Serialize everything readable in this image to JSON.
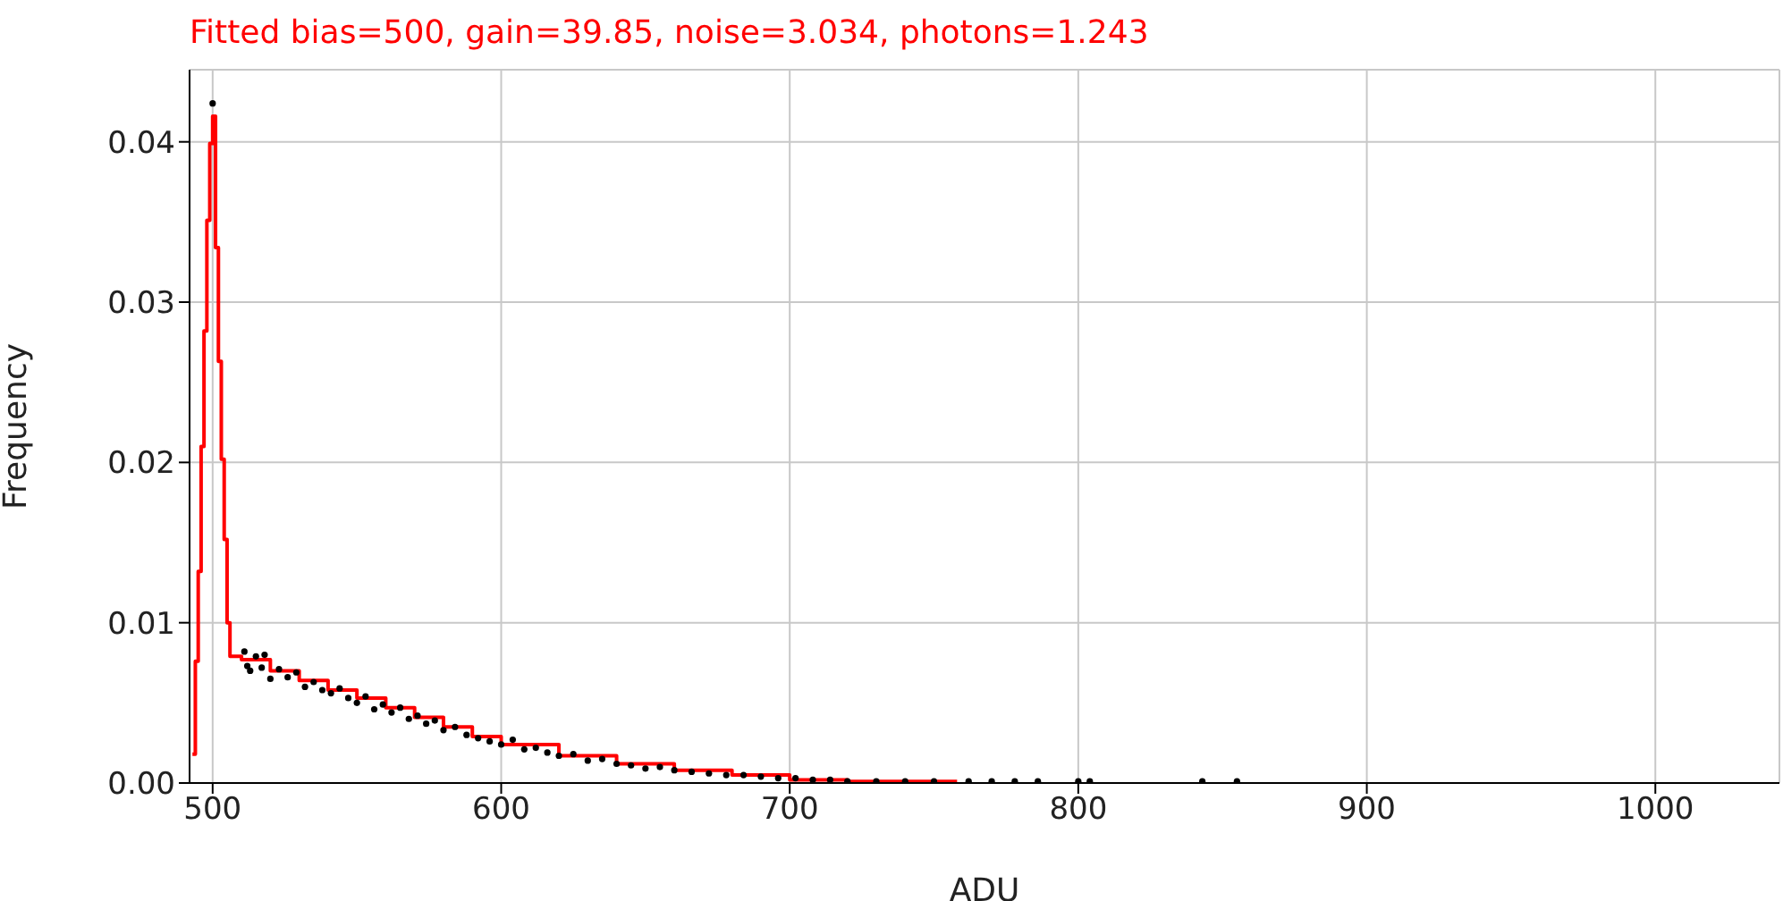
{
  "chart_data": {
    "type": "scatter",
    "title": "Fitted bias=500, gain=39.85, noise=3.034, photons=1.243",
    "xlabel": "ADU",
    "ylabel": "Frequency",
    "xlim": [
      492,
      1043
    ],
    "xticks": [
      500,
      600,
      700,
      800,
      900,
      1000
    ],
    "ylim": [
      0,
      0.0445
    ],
    "yticks": [
      {
        "value": 0,
        "label": "0.00"
      },
      {
        "value": 0.01,
        "label": "0.01"
      },
      {
        "value": 0.02,
        "label": "0.02"
      },
      {
        "value": 0.03,
        "label": "0.03"
      },
      {
        "value": 0.04,
        "label": "0.04"
      }
    ],
    "grid": true,
    "series": [
      {
        "color": "#000000",
        "marker": "circle",
        "x": [
          500,
          511,
          512,
          513,
          515,
          517,
          518,
          520,
          523,
          526,
          529,
          532,
          535,
          538,
          541,
          544,
          547,
          550,
          553,
          556,
          559,
          562,
          565,
          568,
          571,
          574,
          577,
          580,
          584,
          588,
          592,
          596,
          600,
          604,
          608,
          612,
          616,
          620,
          625,
          630,
          635,
          640,
          645,
          650,
          655,
          660,
          666,
          672,
          678,
          684,
          690,
          696,
          702,
          708,
          714,
          720,
          730,
          740,
          750,
          762,
          770,
          778,
          786,
          800,
          804,
          843,
          855
        ],
        "values": [
          0.0424,
          0.0082,
          0.0073,
          0.007,
          0.0079,
          0.0072,
          0.008,
          0.0065,
          0.0071,
          0.0066,
          0.0069,
          0.006,
          0.0063,
          0.0058,
          0.0056,
          0.0059,
          0.0053,
          0.005,
          0.0054,
          0.0046,
          0.0049,
          0.0044,
          0.0047,
          0.004,
          0.0042,
          0.0037,
          0.0039,
          0.0033,
          0.0035,
          0.003,
          0.0028,
          0.0026,
          0.0024,
          0.0027,
          0.0021,
          0.0022,
          0.0019,
          0.0017,
          0.0018,
          0.0014,
          0.0015,
          0.0012,
          0.0011,
          0.0009,
          0.001,
          0.0008,
          0.0007,
          0.0006,
          0.0005,
          0.0005,
          0.0004,
          0.0003,
          0.0003,
          0.0002,
          0.0002,
          0.0001,
          0.0001,
          0.0001,
          0.0001,
          0.0001,
          0.0001,
          0.0001,
          0.0001,
          0.0001,
          0.0001,
          0.0001,
          0.0001
        ]
      },
      {
        "type": "step",
        "color": "#ff0000",
        "marker": "none",
        "x": [
          493,
          494,
          495,
          496,
          497,
          498,
          499,
          500,
          501,
          502,
          503,
          504,
          505,
          506,
          510,
          520,
          530,
          540,
          550,
          560,
          570,
          580,
          590,
          600,
          620,
          640,
          660,
          680,
          700,
          720,
          740,
          758
        ],
        "values": [
          0.0018,
          0.0076,
          0.0132,
          0.021,
          0.0282,
          0.0351,
          0.0399,
          0.0416,
          0.0334,
          0.0263,
          0.0202,
          0.0152,
          0.01,
          0.0079,
          0.0077,
          0.007,
          0.0064,
          0.0058,
          0.0053,
          0.0047,
          0.0041,
          0.0035,
          0.0029,
          0.0024,
          0.0017,
          0.0012,
          0.0008,
          0.0005,
          0.0002,
          0.0001,
          0.0001,
          0.0001
        ]
      }
    ]
  }
}
